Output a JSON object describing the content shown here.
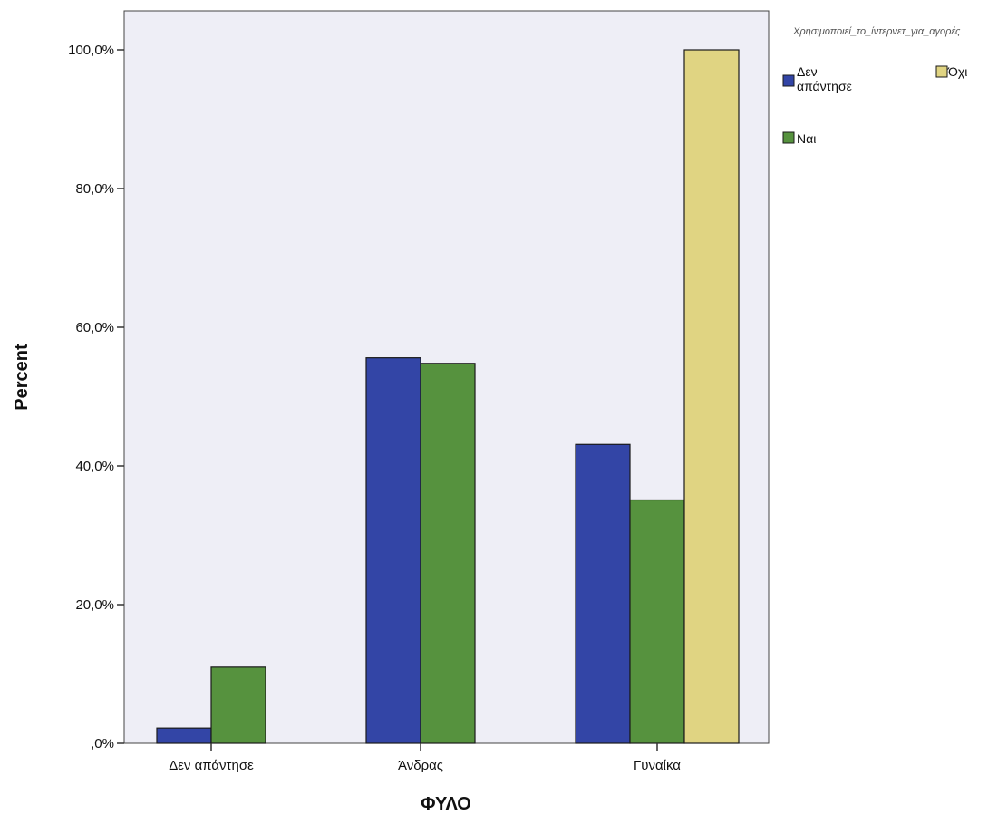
{
  "chart_data": {
    "type": "bar",
    "categories": [
      "Δεν απάντησε",
      "Άνδρας",
      "Γυναίκα"
    ],
    "series": [
      {
        "name": "Δεν απάντησε",
        "color": "#3345a6",
        "values": [
          2.2,
          55.6,
          43.1
        ]
      },
      {
        "name": "Ναι",
        "color": "#56923e",
        "values": [
          11.0,
          54.8,
          35.1
        ]
      },
      {
        "name": "Όχι",
        "color": "#e0d482",
        "values": [
          0,
          0,
          100.0
        ]
      }
    ],
    "xlabel": "ΦΥΛΟ",
    "ylabel": "Percent",
    "ylim": [
      0,
      100
    ],
    "yticks": [
      0,
      20,
      40,
      60,
      80,
      100
    ],
    "ytick_labels": [
      ",0%",
      "20,0%",
      "40,0%",
      "60,0%",
      "80,0%",
      "100,0%"
    ],
    "legend_title": "Χρησιμοποιεί_το_ίντερνετ_για_αγορές",
    "legend_position": "top-right",
    "grid": false
  }
}
